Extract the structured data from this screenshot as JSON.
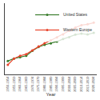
{
  "chart_data": {
    "type": "line",
    "x_label": "Year",
    "categories": [
      "1950-1954",
      "1955-1959",
      "1960-1964",
      "1965-1969",
      "1970-1974",
      "1975-1979",
      "1980-1984",
      "1985-1989",
      "1990-1994",
      "1995-1999",
      "2000-2004",
      "2005-2009",
      "2010-2014",
      "2015-2019",
      "2020-2024"
    ],
    "series": [
      {
        "name": "United States",
        "color": "#3a7d2c",
        "marker": "circle",
        "values": [
          68.9,
          69.8,
          70.3,
          70.8,
          72.6,
          74.0,
          74.8,
          75.3,
          76.0,
          76.9,
          77.6,
          78.5,
          78.9,
          78.6,
          79.2
        ]
      },
      {
        "name": "Western Europe",
        "color": "#e8452c",
        "marker": "circle",
        "values": [
          67.5,
          69.8,
          70.8,
          71.4,
          72.8,
          74.2,
          75.4,
          76.4,
          77.5,
          78.6,
          79.9,
          81.1,
          82.0,
          82.3,
          82.9
        ]
      }
    ],
    "ylim": [
      64,
      90
    ],
    "tick_labels": "x",
    "grid": false,
    "legend": "top right"
  }
}
